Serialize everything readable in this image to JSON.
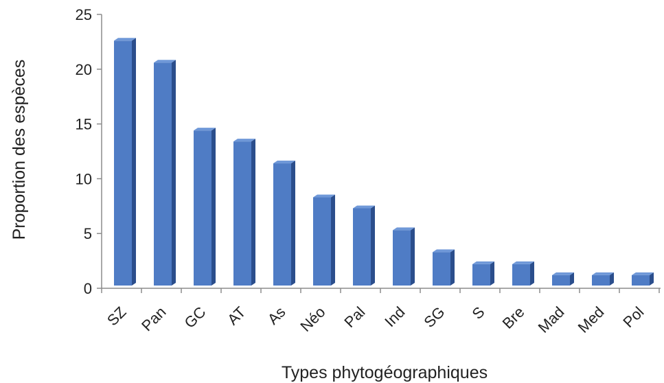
{
  "chart_data": {
    "type": "bar",
    "title": "",
    "xlabel": "Types phytogéographiques",
    "ylabel": "Proportion des espèces",
    "categories": [
      "SZ",
      "Pan",
      "GC",
      "AT",
      "As",
      "Néo",
      "Pal",
      "Ind",
      "SG",
      "S",
      "Bre",
      "Mad",
      "Med",
      "Pol"
    ],
    "values": [
      22.6,
      20.6,
      14.4,
      13.4,
      11.4,
      8.3,
      7.3,
      5.3,
      3.3,
      2.2,
      2.2,
      1.2,
      1.2,
      1.2
    ],
    "ylim": [
      0,
      25
    ],
    "yticks": [
      0,
      5,
      10,
      15,
      20,
      25
    ],
    "grid": false,
    "legend": "none",
    "bar_style": "3d",
    "colors": {
      "front": "#4F7CC5",
      "side": "#2B4E8C",
      "top": "#6F98D8"
    }
  }
}
